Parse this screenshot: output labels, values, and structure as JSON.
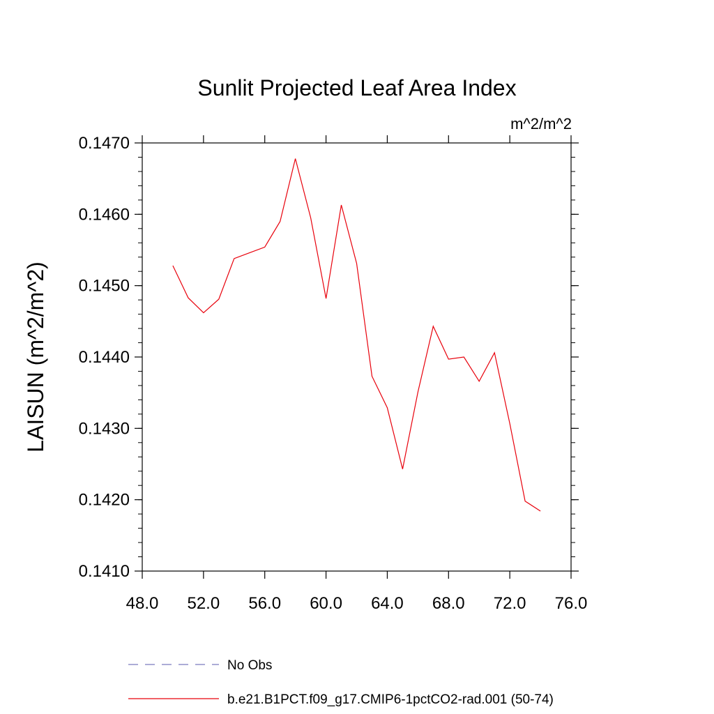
{
  "chart_data": {
    "type": "line",
    "title": "Sunlit Projected Leaf Area Index",
    "units_label": "m^2/m^2",
    "xlabel": "",
    "ylabel": "LAISUN  (m^2/m^2)",
    "xlim": [
      48,
      76
    ],
    "ylim": [
      0.141,
      0.147
    ],
    "x_ticks": [
      "48.0",
      "52.0",
      "56.0",
      "60.0",
      "64.0",
      "68.0",
      "72.0",
      "76.0"
    ],
    "y_ticks": [
      "0.1410",
      "0.1420",
      "0.1430",
      "0.1440",
      "0.1450",
      "0.1460",
      "0.1470"
    ],
    "grid": false,
    "legend_position": "bottom",
    "legend": [
      {
        "label": "No Obs",
        "color": "#7b7bbf",
        "style": "dashed"
      },
      {
        "label": "b.e21.B1PCT.f09_g17.CMIP6-1pctCO2-rad.001 (50-74)",
        "color": "#e8000b",
        "style": "solid"
      }
    ],
    "series": [
      {
        "name": "b.e21.B1PCT.f09_g17.CMIP6-1pctCO2-rad.001 (50-74)",
        "color": "#e8000b",
        "x": [
          50,
          51,
          52,
          53,
          54,
          55,
          56,
          57,
          58,
          59,
          60,
          61,
          62,
          63,
          64,
          65,
          66,
          67,
          68,
          69,
          70,
          71,
          72,
          73,
          74
        ],
        "y": [
          0.14528,
          0.14483,
          0.14462,
          0.14481,
          0.14538,
          0.14546,
          0.14554,
          0.1459,
          0.14678,
          0.14595,
          0.14482,
          0.14613,
          0.14531,
          0.14373,
          0.14329,
          0.14243,
          0.14351,
          0.14443,
          0.14397,
          0.144,
          0.14366,
          0.14406,
          0.14307,
          0.14198,
          0.14184
        ]
      }
    ]
  }
}
